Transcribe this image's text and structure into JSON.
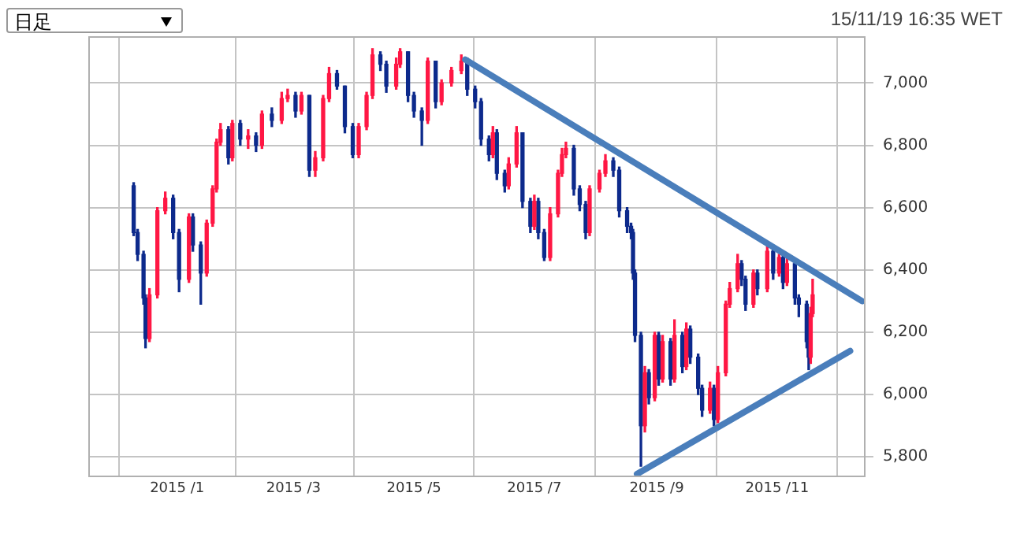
{
  "chart_data": {
    "type": "candlestick",
    "annotations": [
      "日足",
      "15/11/19 16:35 WET"
    ],
    "xlim": [
      "2014-11-17",
      "2015-12-15"
    ],
    "xticks": [
      {
        "value": "2015-01-01",
        "label": "2015 /1"
      },
      {
        "value": "2015-03-01",
        "label": "2015 /3"
      },
      {
        "value": "2015-05-01",
        "label": "2015 /5"
      },
      {
        "value": "2015-07-01",
        "label": "2015 /7"
      },
      {
        "value": "2015-09-01",
        "label": "2015 /9"
      },
      {
        "value": "2015-11-01",
        "label": "2015 /11"
      }
    ],
    "ylim": [
      5740,
      7150
    ],
    "yticks": [
      {
        "value": 5800,
        "label": "5,800"
      },
      {
        "value": 6000,
        "label": "6,000"
      },
      {
        "value": 6200,
        "label": "6,200"
      },
      {
        "value": 6400,
        "label": "6,400"
      },
      {
        "value": 6600,
        "label": "6,600"
      },
      {
        "value": 6800,
        "label": "6,800"
      },
      {
        "value": 7000,
        "label": "7,000"
      }
    ],
    "grid": true,
    "series": [
      {
        "type": "candlestick",
        "color": "#ff1744",
        "x": [
          "2014-12-18",
          "2014-12-22",
          "2014-12-26",
          "2015-01-07",
          "2015-01-16",
          "2015-01-19",
          "2015-01-21",
          "2015-01-23",
          "2015-01-29",
          "2015-02-06",
          "2015-02-13",
          "2015-02-23",
          "2015-02-26",
          "2015-03-05",
          "2015-03-12",
          "2015-03-16",
          "2015-03-19",
          "2015-04-03",
          "2015-04-07",
          "2015-04-10",
          "2015-04-22",
          "2015-04-24",
          "2015-05-08",
          "2015-05-15",
          "2015-05-20",
          "2015-05-25",
          "2015-06-10",
          "2015-06-18",
          "2015-06-22",
          "2015-07-01",
          "2015-07-09",
          "2015-07-13",
          "2015-07-15",
          "2015-07-17",
          "2015-07-29",
          "2015-08-03",
          "2015-08-06",
          "2015-08-26",
          "2015-08-31",
          "2015-09-04",
          "2015-09-10",
          "2015-09-16",
          "2015-09-28",
          "2015-10-02",
          "2015-10-06",
          "2015-10-08",
          "2015-10-12",
          "2015-10-20",
          "2015-10-27",
          "2015-11-02",
          "2015-11-06",
          "2015-11-18",
          "2015-11-19"
        ],
        "ohlc": [
          [
            6180,
            6340,
            6170,
            6320
          ],
          [
            6320,
            6600,
            6310,
            6590
          ],
          [
            6590,
            6650,
            6580,
            6630
          ],
          [
            6370,
            6580,
            6360,
            6570
          ],
          [
            6390,
            6560,
            6380,
            6550
          ],
          [
            6550,
            6670,
            6540,
            6660
          ],
          [
            6660,
            6820,
            6650,
            6810
          ],
          [
            6810,
            6870,
            6800,
            6850
          ],
          [
            6760,
            6880,
            6750,
            6870
          ],
          [
            6820,
            6850,
            6790,
            6830
          ],
          [
            6800,
            6910,
            6790,
            6900
          ],
          [
            6880,
            6970,
            6870,
            6950
          ],
          [
            6950,
            6980,
            6940,
            6960
          ],
          [
            6910,
            6970,
            6900,
            6960
          ],
          [
            6720,
            6780,
            6700,
            6760
          ],
          [
            6760,
            6960,
            6750,
            6950
          ],
          [
            6950,
            7050,
            6940,
            7030
          ],
          [
            6770,
            6870,
            6760,
            6860
          ],
          [
            6860,
            6970,
            6850,
            6960
          ],
          [
            6960,
            7110,
            6950,
            7090
          ],
          [
            6990,
            7080,
            6980,
            7060
          ],
          [
            7060,
            7110,
            7050,
            7100
          ],
          [
            6880,
            7080,
            6870,
            7070
          ],
          [
            6940,
            7010,
            6930,
            7000
          ],
          [
            7000,
            7050,
            6990,
            7040
          ],
          [
            7040,
            7090,
            7030,
            7070
          ],
          [
            6770,
            6860,
            6760,
            6840
          ],
          [
            6670,
            6760,
            6660,
            6740
          ],
          [
            6740,
            6860,
            6730,
            6840
          ],
          [
            6540,
            6640,
            6530,
            6620
          ],
          [
            6440,
            6600,
            6430,
            6580
          ],
          [
            6580,
            6720,
            6570,
            6710
          ],
          [
            6710,
            6790,
            6700,
            6770
          ],
          [
            6770,
            6810,
            6760,
            6790
          ],
          [
            6520,
            6670,
            6510,
            6660
          ],
          [
            6660,
            6720,
            6650,
            6710
          ],
          [
            6710,
            6770,
            6700,
            6750
          ],
          [
            5900,
            6090,
            5880,
            6070
          ],
          [
            5990,
            6200,
            5980,
            6190
          ],
          [
            6050,
            6190,
            6040,
            6170
          ],
          [
            6050,
            6240,
            6040,
            6190
          ],
          [
            6090,
            6230,
            6080,
            6210
          ],
          [
            5950,
            6040,
            5940,
            6020
          ],
          [
            5920,
            6090,
            5910,
            6070
          ],
          [
            6070,
            6300,
            6060,
            6290
          ],
          [
            6290,
            6360,
            6280,
            6340
          ],
          [
            6340,
            6450,
            6330,
            6420
          ],
          [
            6290,
            6400,
            6280,
            6390
          ],
          [
            6340,
            6480,
            6330,
            6460
          ],
          [
            6390,
            6450,
            6380,
            6440
          ],
          [
            6360,
            6440,
            6350,
            6420
          ],
          [
            6120,
            6280,
            6100,
            6260
          ],
          [
            6260,
            6370,
            6250,
            6320
          ]
        ]
      },
      {
        "type": "candlestick",
        "color": "#0d2a8c",
        "x": [
          "2014-12-10",
          "2014-12-12",
          "2014-12-15",
          "2014-12-16",
          "2014-12-30",
          "2015-01-02",
          "2015-01-09",
          "2015-01-13",
          "2015-01-27",
          "2015-02-02",
          "2015-02-10",
          "2015-02-18",
          "2015-03-02",
          "2015-03-09",
          "2015-03-23",
          "2015-03-27",
          "2015-03-31",
          "2015-04-14",
          "2015-04-17",
          "2015-04-28",
          "2015-05-01",
          "2015-05-05",
          "2015-05-12",
          "2015-05-28",
          "2015-06-01",
          "2015-06-04",
          "2015-06-08",
          "2015-06-12",
          "2015-06-16",
          "2015-06-25",
          "2015-06-29",
          "2015-07-03",
          "2015-07-06",
          "2015-07-21",
          "2015-07-24",
          "2015-07-27",
          "2015-08-10",
          "2015-08-13",
          "2015-08-17",
          "2015-08-19",
          "2015-08-20",
          "2015-08-21",
          "2015-08-24",
          "2015-08-28",
          "2015-09-02",
          "2015-09-08",
          "2015-09-14",
          "2015-09-18",
          "2015-09-22",
          "2015-09-24",
          "2015-09-30",
          "2015-10-14",
          "2015-10-16",
          "2015-10-22",
          "2015-10-30",
          "2015-11-04",
          "2015-11-10",
          "2015-11-12",
          "2015-11-16",
          "2015-11-17"
        ],
        "ohlc": [
          [
            6670,
            6680,
            6510,
            6520
          ],
          [
            6520,
            6530,
            6430,
            6450
          ],
          [
            6450,
            6460,
            6290,
            6310
          ],
          [
            6310,
            6320,
            6150,
            6180
          ],
          [
            6630,
            6640,
            6500,
            6520
          ],
          [
            6520,
            6530,
            6330,
            6370
          ],
          [
            6570,
            6580,
            6460,
            6480
          ],
          [
            6480,
            6490,
            6290,
            6390
          ],
          [
            6850,
            6860,
            6740,
            6760
          ],
          [
            6870,
            6880,
            6800,
            6820
          ],
          [
            6830,
            6840,
            6780,
            6800
          ],
          [
            6900,
            6920,
            6860,
            6880
          ],
          [
            6960,
            6970,
            6890,
            6910
          ],
          [
            6960,
            6960,
            6700,
            6720
          ],
          [
            7030,
            7040,
            6980,
            6990
          ],
          [
            6990,
            6990,
            6840,
            6860
          ],
          [
            6860,
            6870,
            6760,
            6770
          ],
          [
            7090,
            7100,
            7040,
            7060
          ],
          [
            7060,
            7070,
            6970,
            6990
          ],
          [
            7100,
            7100,
            6940,
            6960
          ],
          [
            6960,
            6970,
            6890,
            6910
          ],
          [
            6910,
            6920,
            6800,
            6880
          ],
          [
            7070,
            7070,
            6920,
            6940
          ],
          [
            7070,
            7080,
            6960,
            6980
          ],
          [
            6980,
            6990,
            6920,
            6940
          ],
          [
            6940,
            6950,
            6800,
            6820
          ],
          [
            6820,
            6830,
            6750,
            6770
          ],
          [
            6840,
            6850,
            6690,
            6710
          ],
          [
            6710,
            6720,
            6650,
            6670
          ],
          [
            6840,
            6840,
            6600,
            6620
          ],
          [
            6620,
            6630,
            6520,
            6540
          ],
          [
            6620,
            6630,
            6500,
            6520
          ],
          [
            6520,
            6530,
            6430,
            6440
          ],
          [
            6790,
            6800,
            6640,
            6660
          ],
          [
            6660,
            6670,
            6590,
            6610
          ],
          [
            6610,
            6620,
            6500,
            6520
          ],
          [
            6750,
            6760,
            6700,
            6720
          ],
          [
            6720,
            6730,
            6570,
            6590
          ],
          [
            6590,
            6600,
            6520,
            6540
          ],
          [
            6540,
            6550,
            6500,
            6520
          ],
          [
            6520,
            6530,
            6370,
            6390
          ],
          [
            6390,
            6400,
            6170,
            6190
          ],
          [
            6190,
            6200,
            5770,
            5900
          ],
          [
            6070,
            6080,
            5970,
            5990
          ],
          [
            6190,
            6200,
            6030,
            6050
          ],
          [
            6170,
            6180,
            6030,
            6050
          ],
          [
            6190,
            6200,
            6070,
            6090
          ],
          [
            6210,
            6220,
            6100,
            6120
          ],
          [
            6120,
            6130,
            6000,
            6020
          ],
          [
            6020,
            6030,
            5930,
            5950
          ],
          [
            6020,
            6030,
            5900,
            5920
          ],
          [
            6420,
            6430,
            6350,
            6370
          ],
          [
            6370,
            6380,
            6270,
            6290
          ],
          [
            6390,
            6400,
            6320,
            6340
          ],
          [
            6460,
            6470,
            6370,
            6390
          ],
          [
            6440,
            6450,
            6340,
            6360
          ],
          [
            6420,
            6430,
            6290,
            6310
          ],
          [
            6310,
            6320,
            6250,
            6290
          ],
          [
            6290,
            6300,
            6150,
            6170
          ],
          [
            6170,
            6180,
            6080,
            6120
          ]
        ]
      },
      {
        "type": "line",
        "color": "#4a7ebb",
        "x": [
          "2015-05-27",
          "2015-12-14"
        ],
        "values": [
          7075,
          6300
        ]
      },
      {
        "type": "line",
        "color": "#4a7ebb",
        "x": [
          "2015-08-22",
          "2015-12-08"
        ],
        "values": [
          5745,
          6140
        ]
      }
    ]
  }
}
